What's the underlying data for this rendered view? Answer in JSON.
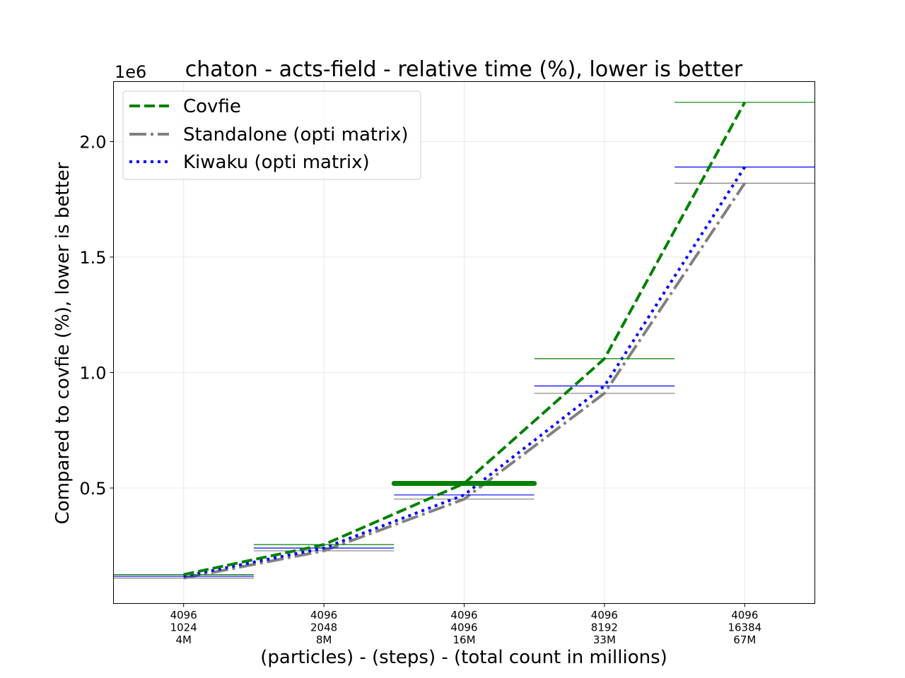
{
  "chart_data": {
    "type": "line",
    "title": "chaton - acts-field - relative time (%), lower is better",
    "xlabel": "(particles) - (steps) - (total count in millions)",
    "ylabel": "Compared to covfie (%), lower is better",
    "y_offset_label": "1e6",
    "ylim": [
      0,
      2260000
    ],
    "yticks": [
      500000,
      1000000,
      1500000,
      2000000
    ],
    "ytick_labels": [
      "0.5",
      "1.0",
      "1.5",
      "2.0"
    ],
    "categories": [
      [
        "4096",
        "1024",
        "4M"
      ],
      [
        "4096",
        "2048",
        "8M"
      ],
      [
        "4096",
        "4096",
        "16M"
      ],
      [
        "4096",
        "8192",
        "33M"
      ],
      [
        "4096",
        "16384",
        "67M"
      ]
    ],
    "grid": true,
    "legend_position": "top-left",
    "series": [
      {
        "name": "Covfie",
        "color": "#008000",
        "style": "dashed",
        "values": [
          125000,
          255000,
          520000,
          1060000,
          2170000
        ]
      },
      {
        "name": "Standalone (opti matrix)",
        "color": "#808080",
        "style": "dashdot",
        "values": [
          110000,
          228000,
          452000,
          910000,
          1820000
        ]
      },
      {
        "name": "Kiwaku (opti matrix)",
        "color": "#0000ff",
        "style": "dotted",
        "values": [
          118000,
          240000,
          470000,
          942000,
          1890000
        ]
      }
    ]
  }
}
